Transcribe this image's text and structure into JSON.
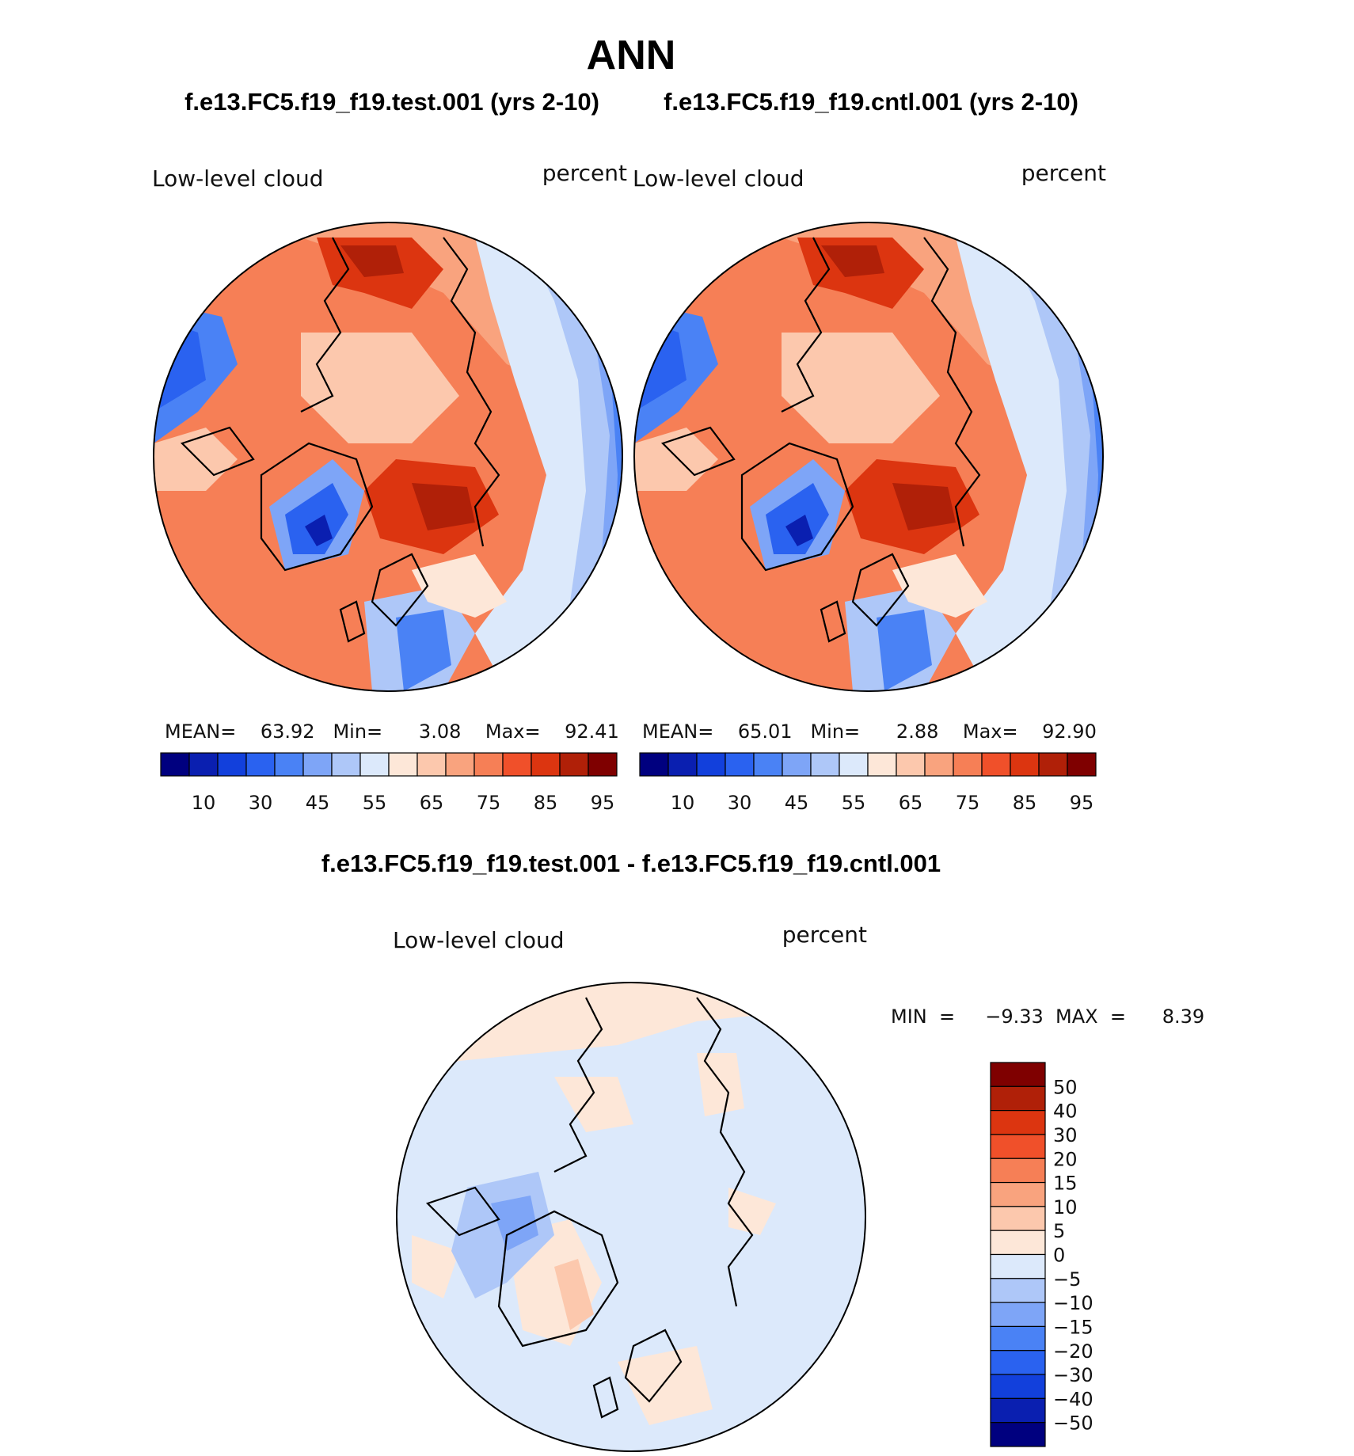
{
  "page": {
    "season": "ANN",
    "test_title": "f.e13.FC5.f19_f19.test.001 (yrs 2-10)",
    "cntl_title": "f.e13.FC5.f19_f19.cntl.001 (yrs 2-10)",
    "diff_title": "f.e13.FC5.f19_f19.test.001 - f.e13.FC5.f19_f19.cntl.001"
  },
  "panels": {
    "test": {
      "variable": "Low-level cloud",
      "units": "percent",
      "stats_line": "MEAN=    63.92   Min=      3.08    Max=    92.41"
    },
    "cntl": {
      "variable": "Low-level cloud",
      "units": "percent",
      "stats_line": "MEAN=    65.01   Min=      2.88    Max=    92.90"
    },
    "diff": {
      "variable": "Low-level cloud",
      "units": "percent",
      "stats_line": "MIN  =     −9.33  MAX  =      8.39"
    }
  },
  "colorbar_main": {
    "colors": [
      "#00007f",
      "#0a1fb0",
      "#1240dc",
      "#2a62f0",
      "#4a82f5",
      "#7ea5f7",
      "#aec7f8",
      "#dce9fb",
      "#fde7d8",
      "#fcc8ad",
      "#f9a37e",
      "#f67f56",
      "#f0502a",
      "#dc3510",
      "#b02008",
      "#7f0000"
    ],
    "tick_labels": [
      "10",
      "30",
      "45",
      "55",
      "65",
      "75",
      "85",
      "95"
    ]
  },
  "colorbar_diff": {
    "colors": [
      "#7f0000",
      "#b02008",
      "#dc3510",
      "#f0502a",
      "#f67f56",
      "#f9a37e",
      "#fcc8ad",
      "#fde7d8",
      "#dce9fb",
      "#aec7f8",
      "#7ea5f7",
      "#4a82f5",
      "#2a62f0",
      "#1240dc",
      "#0a1fb0",
      "#00007f"
    ],
    "tick_labels": [
      "50",
      "40",
      "30",
      "20",
      "15",
      "10",
      "5",
      "0",
      "−5",
      "−10",
      "−15",
      "−20",
      "−30",
      "−40",
      "−50"
    ]
  }
}
